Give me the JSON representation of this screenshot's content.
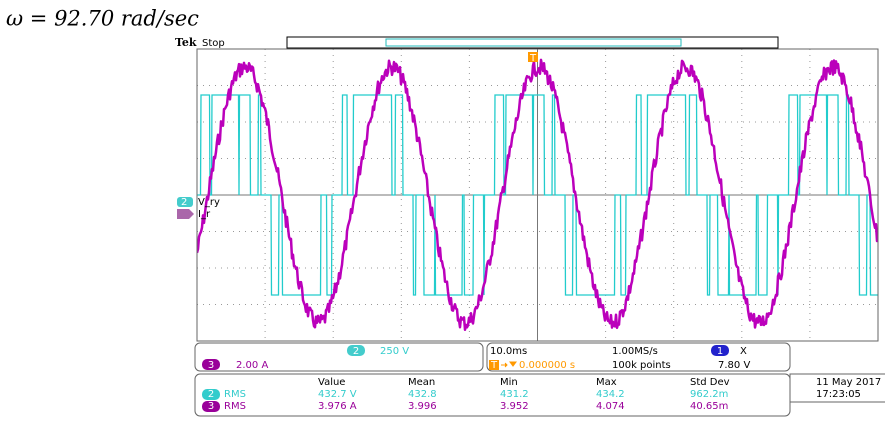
{
  "title": "ω = 92.70 rad/sec",
  "scope": {
    "brand": "Tek",
    "status": "Stop",
    "trigger_marker": "T",
    "channels": [
      {
        "number": "2",
        "label": "V_ry",
        "scale": "250 V"
      },
      {
        "number": "3",
        "label": "I_r",
        "scale": "2.00 A"
      }
    ],
    "timebase": "10.0ms",
    "sample_rate": "1.00MS/s",
    "record_length": "100k points",
    "trigger_channel": "1",
    "trigger_symbol": "X",
    "trigger_level": "7.80 V",
    "trigger_position": "0.000000 s"
  },
  "measurements": {
    "headers": [
      "Value",
      "Mean",
      "Min",
      "Max",
      "Std Dev"
    ],
    "rows": [
      {
        "channel": "2",
        "type": "RMS",
        "values": [
          "432.7 V",
          "432.8",
          "431.2",
          "434.2",
          "962.2m"
        ]
      },
      {
        "channel": "3",
        "type": "RMS",
        "values": [
          "3.976 A",
          "3.996",
          "3.952",
          "4.074",
          "40.65m"
        ]
      }
    ]
  },
  "date": "11 May 2017",
  "time": "17:23:05"
}
